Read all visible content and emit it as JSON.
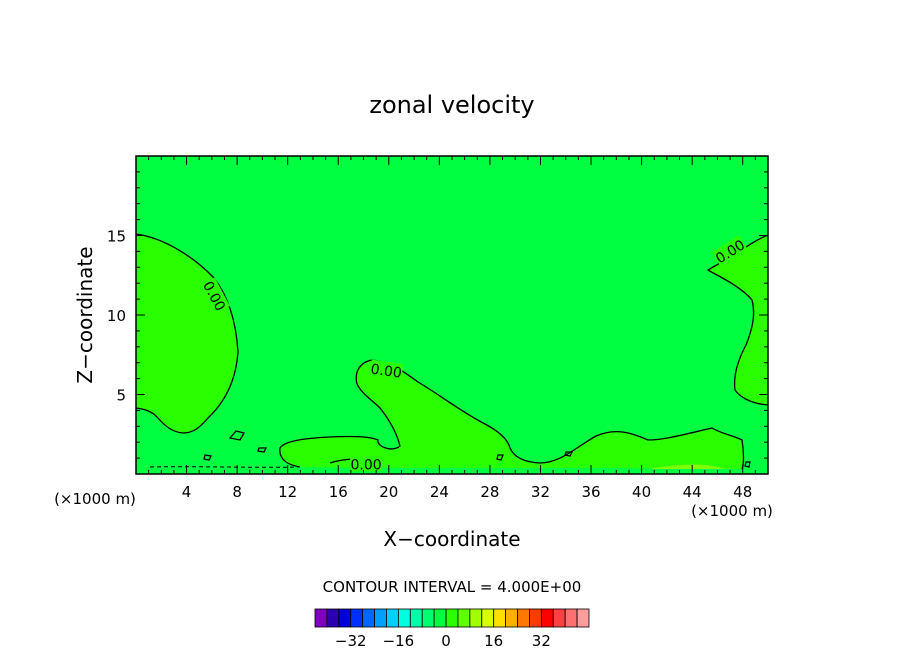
{
  "chart_data": {
    "type": "contour",
    "title": "zonal velocity",
    "xlabel": "X−coordinate",
    "ylabel": "Z−coordinate",
    "x_unit_left": "(×1000 m)",
    "x_unit_right": "(×1000 m)",
    "xlim": [
      0,
      50
    ],
    "ylim": [
      0,
      20
    ],
    "x_ticks": [
      4,
      8,
      12,
      16,
      20,
      24,
      28,
      32,
      36,
      40,
      44,
      48
    ],
    "x_tick_labels": [
      "4",
      "8",
      "12",
      "16",
      "20",
      "24",
      "28",
      "32",
      "36",
      "40",
      "44",
      "48"
    ],
    "y_ticks": [
      5,
      10,
      15
    ],
    "y_tick_labels": [
      "5",
      "10",
      "15"
    ],
    "contour_interval_text": "CONTOUR INTERVAL =  4.000E+00",
    "contour_labels": [
      {
        "text": "0.00",
        "x": 6.2,
        "y": 11.2,
        "angle": 62
      },
      {
        "text": "0.00",
        "x": 19.8,
        "y": 6.5,
        "angle": 8
      },
      {
        "text": "0.00",
        "x": 18.2,
        "y": 0.6,
        "angle": 0
      },
      {
        "text": "0.00",
        "x": 47.0,
        "y": 14.0,
        "angle": -32
      }
    ],
    "field_colors": {
      "background": "#00ff40",
      "positive": "#2aff00",
      "weak_positive": "#80ff00"
    },
    "colorbar": {
      "colors": [
        "#8000c0",
        "#2a00b0",
        "#0000d8",
        "#0030ff",
        "#0068ff",
        "#00a0ff",
        "#00d0ff",
        "#00ffe0",
        "#00ffa8",
        "#00ff70",
        "#00ff40",
        "#2aff00",
        "#60ff00",
        "#a0ff00",
        "#d8ff00",
        "#ffe000",
        "#ffb000",
        "#ff7800",
        "#ff3c00",
        "#ff0000",
        "#ff4040",
        "#ff7070",
        "#ff9c9c"
      ],
      "tick_values": [
        -32,
        -16,
        0,
        16,
        32
      ],
      "tick_labels": [
        "−32",
        "−16",
        "0",
        "16",
        "32"
      ],
      "vmin": -44,
      "vmax": 48
    }
  }
}
